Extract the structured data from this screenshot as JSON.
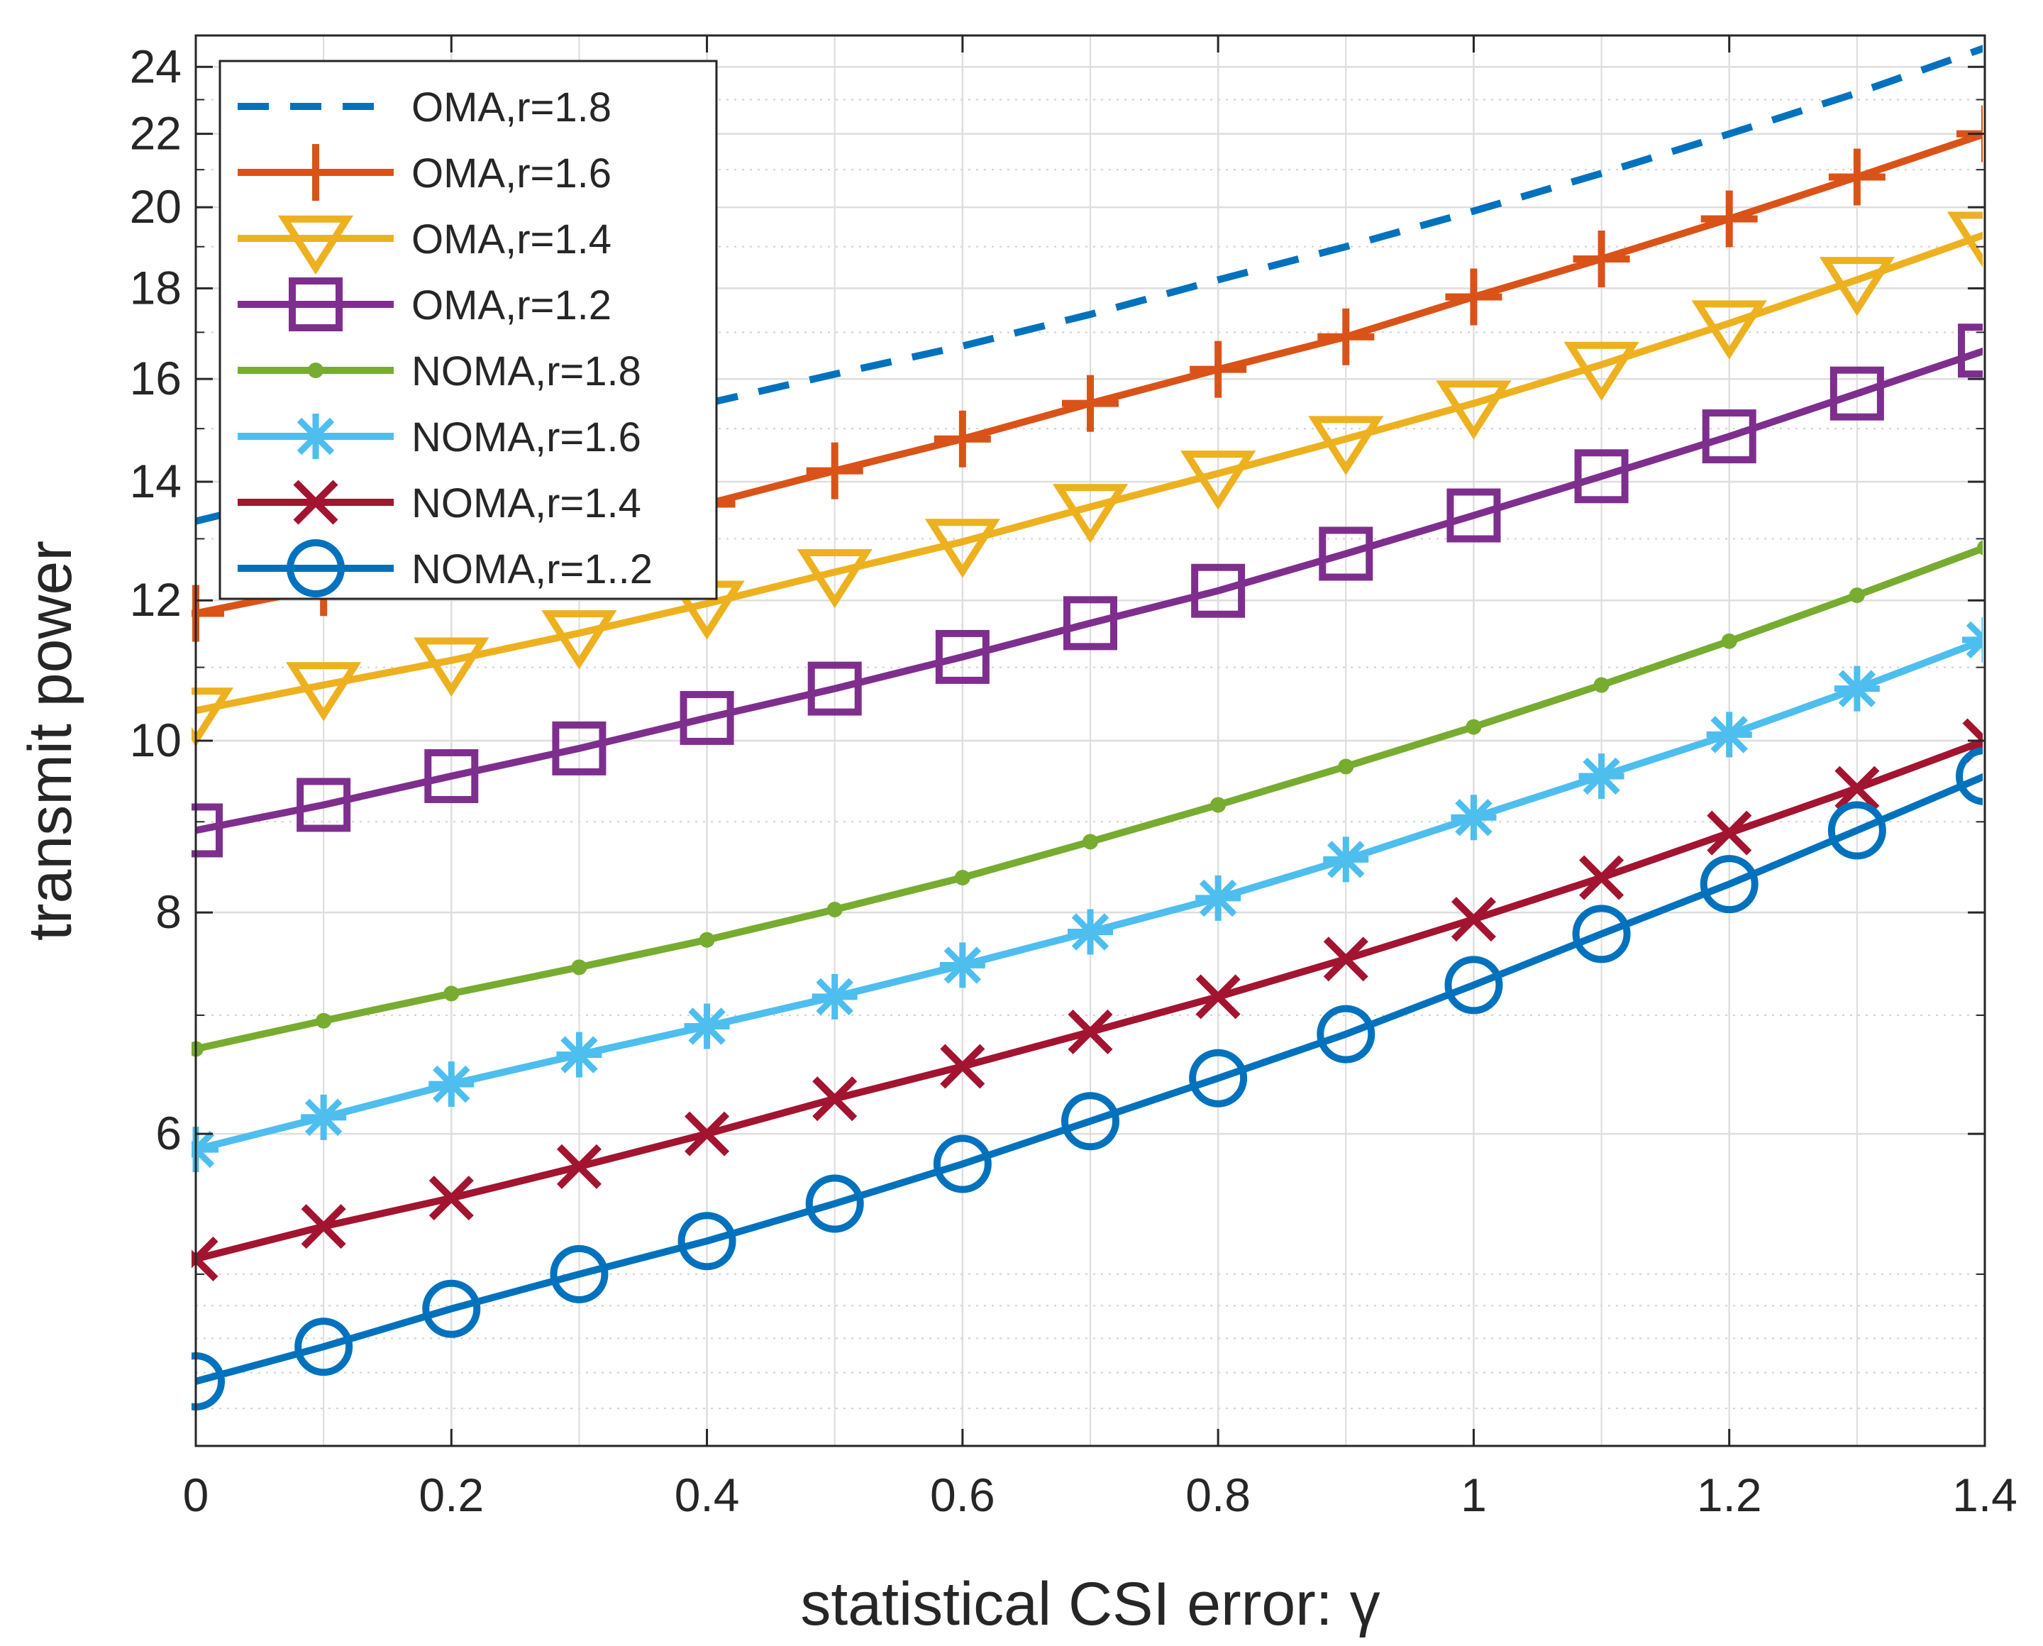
{
  "chart_data": {
    "type": "line",
    "title": "",
    "xlabel": "statistical CSI error: γ",
    "ylabel": "transmit power",
    "x": [
      0,
      0.1,
      0.2,
      0.3,
      0.4,
      0.5,
      0.6,
      0.7,
      0.8,
      0.9,
      1.0,
      1.1,
      1.2,
      1.3,
      1.4
    ],
    "xlim": [
      0,
      1.4
    ],
    "ylim": [
      4,
      25
    ],
    "yscale": "log",
    "grid": true,
    "legend_position": "top-left",
    "xticks": [
      {
        "value": 0,
        "label": "0"
      },
      {
        "value": 0.2,
        "label": "0.2"
      },
      {
        "value": 0.4,
        "label": "0.4"
      },
      {
        "value": 0.6,
        "label": "0.6"
      },
      {
        "value": 0.8,
        "label": "0.8"
      },
      {
        "value": 1.0,
        "label": "1"
      },
      {
        "value": 1.2,
        "label": "1.2"
      },
      {
        "value": 1.4,
        "label": "1.4"
      }
    ],
    "yticks": [
      {
        "value": 6,
        "label": "6"
      },
      {
        "value": 8,
        "label": "8"
      },
      {
        "value": 10,
        "label": "10"
      },
      {
        "value": 12,
        "label": "12"
      },
      {
        "value": 14,
        "label": "14"
      },
      {
        "value": 16,
        "label": "16"
      },
      {
        "value": 18,
        "label": "18"
      },
      {
        "value": 20,
        "label": "20"
      },
      {
        "value": 22,
        "label": "22"
      },
      {
        "value": 24,
        "label": "24"
      }
    ],
    "series": [
      {
        "name": "OMA,r=1.8",
        "color": "#0072BD",
        "marker": "none",
        "dashed": true,
        "values": [
          13.3,
          13.85,
          14.4,
          14.95,
          15.5,
          16.1,
          16.7,
          17.4,
          18.2,
          19.0,
          19.9,
          20.9,
          22.0,
          23.2,
          24.6
        ]
      },
      {
        "name": "OMA,r=1.6",
        "color": "#D95319",
        "marker": "plus",
        "dashed": false,
        "values": [
          11.8,
          12.2,
          12.6,
          13.1,
          13.6,
          14.2,
          14.8,
          15.5,
          16.2,
          16.9,
          17.8,
          18.7,
          19.7,
          20.8,
          22.0
        ]
      },
      {
        "name": "OMA,r=1.4",
        "color": "#EDB120",
        "marker": "triangle-down",
        "dashed": false,
        "values": [
          10.4,
          10.75,
          11.1,
          11.5,
          11.95,
          12.45,
          12.95,
          13.55,
          14.15,
          14.8,
          15.5,
          16.3,
          17.2,
          18.2,
          19.3
        ]
      },
      {
        "name": "OMA,r=1.2",
        "color": "#7E2F8E",
        "marker": "square",
        "dashed": false,
        "values": [
          8.9,
          9.2,
          9.55,
          9.9,
          10.3,
          10.7,
          11.15,
          11.65,
          12.15,
          12.75,
          13.4,
          14.1,
          14.85,
          15.7,
          16.6
        ]
      },
      {
        "name": "NOMA,r=1.8",
        "color": "#77AC30",
        "marker": "dot",
        "dashed": false,
        "values": [
          6.7,
          6.95,
          7.2,
          7.45,
          7.72,
          8.03,
          8.37,
          8.77,
          9.2,
          9.67,
          10.18,
          10.75,
          11.38,
          12.08,
          12.85
        ]
      },
      {
        "name": "NOMA,r=1.6",
        "color": "#4DBEEE",
        "marker": "asterisk",
        "dashed": false,
        "values": [
          5.88,
          6.13,
          6.4,
          6.65,
          6.9,
          7.17,
          7.47,
          7.8,
          8.15,
          8.57,
          9.05,
          9.55,
          10.08,
          10.7,
          11.4
        ]
      },
      {
        "name": "NOMA,r=1.4",
        "color": "#A2142F",
        "marker": "x",
        "dashed": false,
        "values": [
          5.1,
          5.32,
          5.52,
          5.75,
          6.0,
          6.28,
          6.55,
          6.85,
          7.17,
          7.53,
          7.93,
          8.37,
          8.87,
          9.4,
          10.0
        ]
      },
      {
        "name": "NOMA,r=1..2",
        "color": "#0072BD",
        "marker": "circle",
        "dashed": false,
        "values": [
          4.35,
          4.55,
          4.78,
          5.0,
          5.22,
          5.48,
          5.77,
          6.1,
          6.45,
          6.83,
          7.28,
          7.78,
          8.3,
          8.9,
          9.55
        ]
      }
    ]
  }
}
